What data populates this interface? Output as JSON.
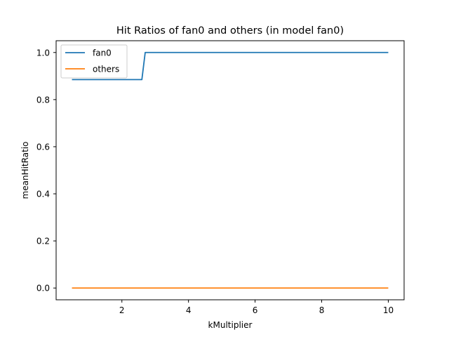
{
  "chart_data": {
    "type": "line",
    "title": "Hit Ratios of fan0 and others (in model fan0)",
    "xlabel": "kMultiplier",
    "ylabel": "meanHitRatio",
    "xlim": [
      0.025,
      10.475
    ],
    "ylim": [
      -0.05,
      1.05
    ],
    "xticks": [
      2,
      4,
      6,
      8,
      10
    ],
    "yticks": [
      0.0,
      0.2,
      0.4,
      0.6,
      0.8,
      1.0
    ],
    "xtick_labels": [
      "2",
      "4",
      "6",
      "8",
      "10"
    ],
    "ytick_labels": [
      "0.0",
      "0.2",
      "0.4",
      "0.6",
      "0.8",
      "1.0"
    ],
    "grid": false,
    "legend": {
      "position": "top-left"
    },
    "series": [
      {
        "name": "fan0",
        "color": "#1f77b4",
        "x": [
          0.5,
          2.6,
          2.7,
          10.0
        ],
        "y": [
          0.885,
          0.885,
          1.0,
          1.0
        ]
      },
      {
        "name": "others",
        "color": "#ff7f0e",
        "x": [
          0.5,
          10.0
        ],
        "y": [
          0.0,
          0.0
        ]
      }
    ]
  }
}
